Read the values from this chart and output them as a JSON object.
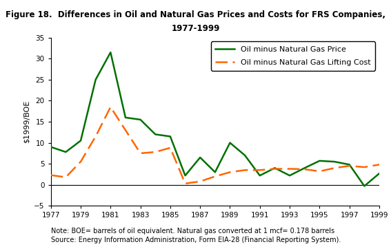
{
  "title_line1": "Figure 18.  Differences in Oil and Natural Gas Prices and Costs for FRS Companies,",
  "title_line2": "1977-1999",
  "ylabel": "$1999/BOE",
  "note_line1": "Note: BOE= barrels of oil equivalent. Natural gas converted at 1 mcf= 0.178 barrels",
  "note_line2": "Source: Energy Information Administration, Form EIA-28 (Financial Reporting System).",
  "xlim": [
    1977,
    1999
  ],
  "ylim": [
    -5,
    35
  ],
  "yticks": [
    -5,
    0,
    5,
    10,
    15,
    20,
    25,
    30,
    35
  ],
  "xticks": [
    1977,
    1979,
    1981,
    1983,
    1985,
    1987,
    1989,
    1991,
    1993,
    1995,
    1997,
    1999
  ],
  "oil_price_years": [
    1977,
    1978,
    1979,
    1980,
    1981,
    1982,
    1983,
    1984,
    1985,
    1986,
    1987,
    1988,
    1989,
    1990,
    1991,
    1992,
    1993,
    1994,
    1995,
    1996,
    1997,
    1998,
    1999
  ],
  "oil_price_values": [
    9.0,
    7.8,
    10.5,
    25.0,
    31.5,
    16.0,
    15.5,
    12.0,
    11.5,
    2.2,
    6.5,
    3.0,
    10.0,
    7.0,
    2.2,
    4.0,
    2.2,
    4.0,
    5.7,
    5.5,
    4.8,
    -0.3,
    2.7
  ],
  "oil_cost_years": [
    1977,
    1978,
    1979,
    1980,
    1981,
    1982,
    1983,
    1984,
    1985,
    1986,
    1987,
    1988,
    1989,
    1990,
    1991,
    1992,
    1993,
    1994,
    1995,
    1996,
    1997,
    1998,
    1999
  ],
  "oil_cost_values": [
    2.3,
    1.8,
    5.5,
    11.5,
    18.5,
    13.0,
    7.5,
    7.8,
    8.8,
    0.3,
    0.8,
    2.0,
    3.0,
    3.5,
    3.5,
    3.8,
    3.8,
    3.7,
    3.2,
    4.0,
    4.5,
    4.2,
    4.8
  ],
  "price_color": "#007000",
  "cost_color": "#FF6600",
  "price_label": "Oil minus Natural Gas Price",
  "cost_label": "Oil minus Natural Gas Lifting Cost",
  "background_color": "#ffffff",
  "title_fontsize": 8.5,
  "label_fontsize": 8,
  "tick_fontsize": 7.5,
  "note_fontsize": 7,
  "legend_fontsize": 8
}
